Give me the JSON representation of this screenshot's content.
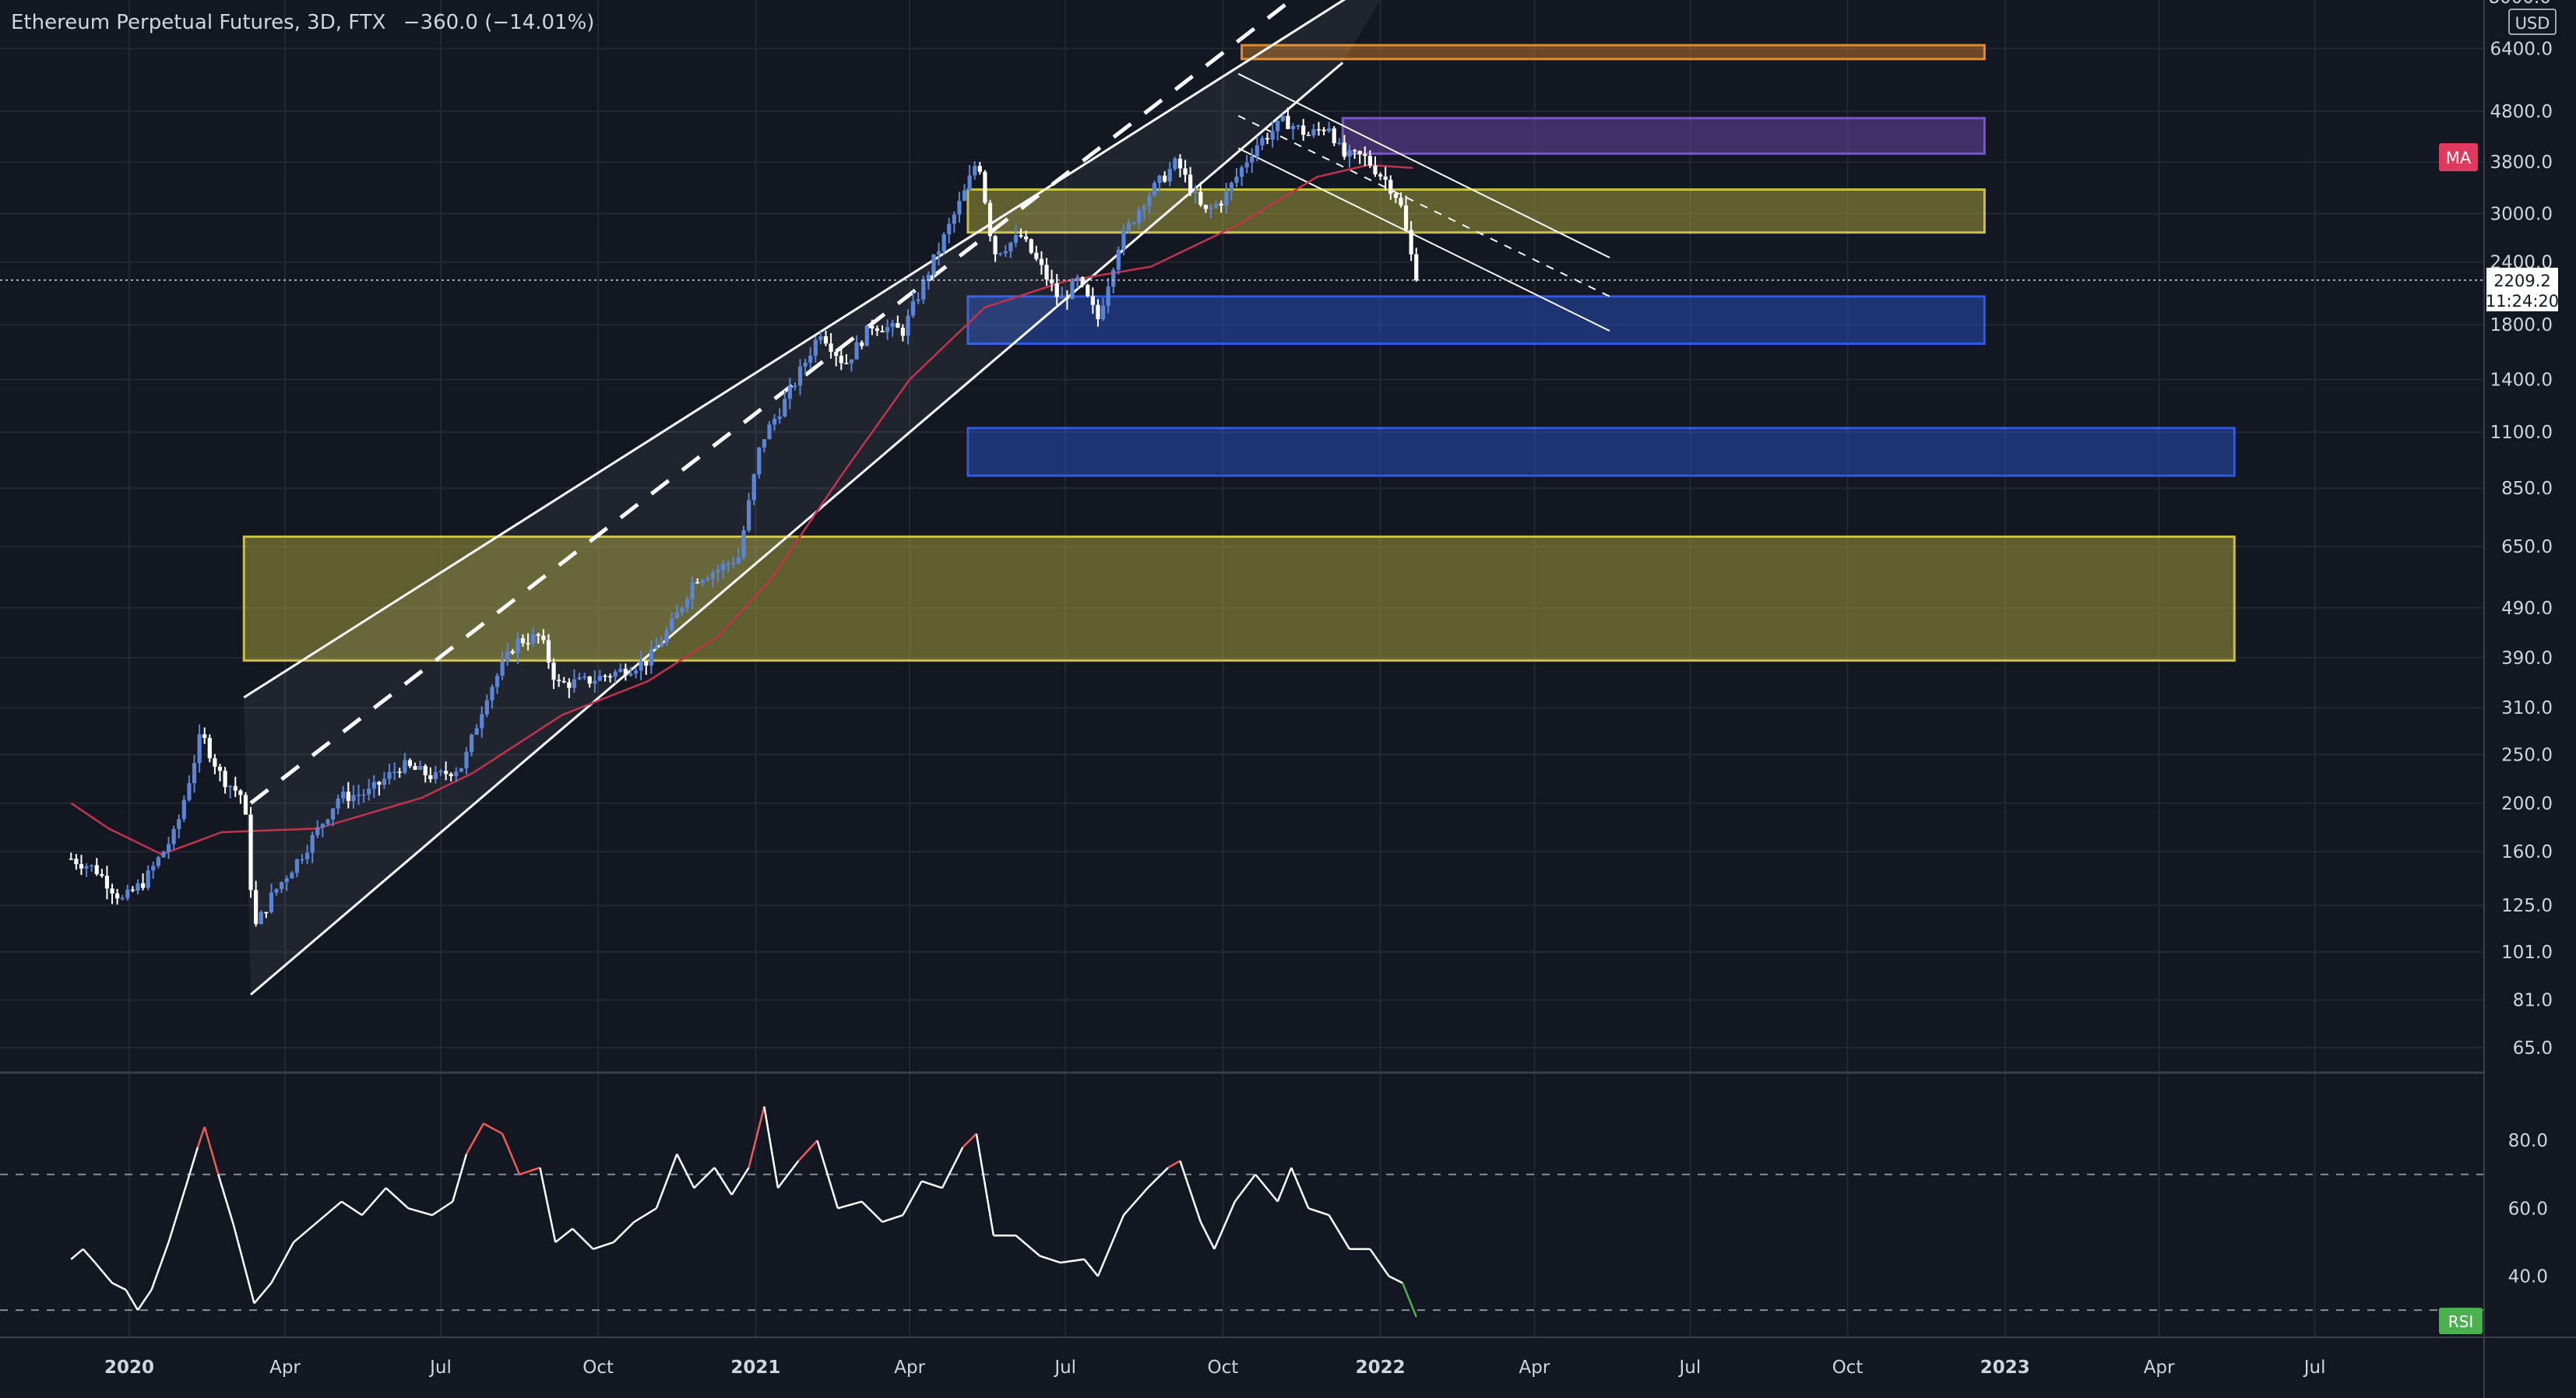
{
  "header": {
    "symbol": "Ethereum Perpetual Futures, 3D, FTX",
    "change": "−360.0 (−14.01%)"
  },
  "price_axis": {
    "currency": "USD",
    "top_partial": "8000.0",
    "ticks": [
      "6400.0",
      "4800.0",
      "3800.0",
      "3000.0",
      "2400.0",
      "1800.0",
      "1400.0",
      "1100.0",
      "850.0",
      "650.0",
      "490.0",
      "390.0",
      "310.0",
      "250.0",
      "200.0",
      "160.0",
      "125.0",
      "101.0",
      "81.0",
      "65.0"
    ],
    "last_price": "2209.2",
    "countdown": "11:24:20",
    "ma_badge": "MA"
  },
  "rsi_axis": {
    "ticks": [
      "80.0",
      "60.0",
      "40.0"
    ],
    "badge": "RSI"
  },
  "time_axis": {
    "labels": [
      "2020",
      "Apr",
      "Jul",
      "Oct",
      "2021",
      "Apr",
      "Jul",
      "Oct",
      "2022",
      "Apr",
      "Jul",
      "Oct",
      "2023",
      "Apr",
      "Jul"
    ]
  },
  "colors": {
    "background": "#131722",
    "grid": "#242733",
    "up_candle": "#5b84d6",
    "down_candle": "#ffffff",
    "ma_line": "#c2334d",
    "ma_badge": "#e0385f",
    "rsi_line": "#ffffff",
    "rsi_overbought": "#ef5b5b",
    "rsi_oversold": "#4caf50",
    "rsi_badge": "#4caf50",
    "zone_yellow": "#c9c041",
    "zone_blue": "#2d5ae0",
    "zone_purple": "#7b53c9",
    "zone_orange": "#e38a2a"
  },
  "chart_data": [
    {
      "type": "candlestick",
      "scale": "log",
      "ylim": [
        58,
        8000
      ],
      "x_dates": [
        "2020-01-01",
        "2020-04-01",
        "2020-07-01",
        "2020-10-01",
        "2021-01-01",
        "2021-04-01",
        "2021-07-01",
        "2021-10-01",
        "2022-01-01",
        "2022-04-01",
        "2022-07-01",
        "2022-10-01",
        "2023-01-01",
        "2023-04-01",
        "2023-07-01"
      ],
      "price_path": [
        [
          "2019-11-28",
          155
        ],
        [
          "2019-12-12",
          148
        ],
        [
          "2019-12-28",
          128
        ],
        [
          "2020-01-10",
          140
        ],
        [
          "2020-01-28",
          175
        ],
        [
          "2020-02-12",
          275
        ],
        [
          "2020-02-24",
          225
        ],
        [
          "2020-03-08",
          205
        ],
        [
          "2020-03-14",
          112
        ],
        [
          "2020-03-25",
          132
        ],
        [
          "2020-04-12",
          160
        ],
        [
          "2020-05-02",
          205
        ],
        [
          "2020-05-20",
          210
        ],
        [
          "2020-06-08",
          238
        ],
        [
          "2020-06-28",
          225
        ],
        [
          "2020-07-14",
          238
        ],
        [
          "2020-07-28",
          330
        ],
        [
          "2020-08-14",
          420
        ],
        [
          "2020-08-28",
          430
        ],
        [
          "2020-09-07",
          345
        ],
        [
          "2020-09-24",
          350
        ],
        [
          "2020-10-12",
          365
        ],
        [
          "2020-10-30",
          385
        ],
        [
          "2020-11-14",
          460
        ],
        [
          "2020-11-26",
          560
        ],
        [
          "2020-12-10",
          585
        ],
        [
          "2020-12-22",
          620
        ],
        [
          "2021-01-04",
          1050
        ],
        [
          "2021-01-20",
          1300
        ],
        [
          "2021-02-08",
          1750
        ],
        [
          "2021-02-22",
          1500
        ],
        [
          "2021-03-10",
          1800
        ],
        [
          "2021-03-28",
          1750
        ],
        [
          "2021-04-12",
          2300
        ],
        [
          "2021-05-03",
          3300
        ],
        [
          "2021-05-11",
          3900
        ],
        [
          "2021-05-20",
          2500
        ],
        [
          "2021-06-05",
          2700
        ],
        [
          "2021-06-18",
          2300
        ],
        [
          "2021-06-28",
          2000
        ],
        [
          "2021-07-08",
          2200
        ],
        [
          "2021-07-20",
          1850
        ],
        [
          "2021-08-01",
          2600
        ],
        [
          "2021-08-16",
          3200
        ],
        [
          "2021-09-04",
          3800
        ],
        [
          "2021-09-20",
          3000
        ],
        [
          "2021-10-01",
          3200
        ],
        [
          "2021-10-20",
          4100
        ],
        [
          "2021-11-06",
          4600
        ],
        [
          "2021-11-20",
          4300
        ],
        [
          "2021-12-02",
          4500
        ],
        [
          "2021-12-10",
          3900
        ],
        [
          "2021-12-22",
          3900
        ],
        [
          "2022-01-04",
          3500
        ],
        [
          "2022-01-12",
          3200
        ],
        [
          "2022-01-22",
          2209
        ]
      ],
      "ma_path": [
        [
          "2019-11-28",
          200
        ],
        [
          "2019-12-20",
          178
        ],
        [
          "2020-01-20",
          158
        ],
        [
          "2020-02-24",
          175
        ],
        [
          "2020-04-20",
          178
        ],
        [
          "2020-06-20",
          205
        ],
        [
          "2020-07-20",
          230
        ],
        [
          "2020-09-10",
          300
        ],
        [
          "2020-10-30",
          350
        ],
        [
          "2020-12-10",
          430
        ],
        [
          "2021-01-10",
          560
        ],
        [
          "2021-02-20",
          900
        ],
        [
          "2021-04-01",
          1400
        ],
        [
          "2021-05-15",
          1950
        ],
        [
          "2021-07-01",
          2200
        ],
        [
          "2021-08-20",
          2350
        ],
        [
          "2021-10-10",
          2850
        ],
        [
          "2021-11-25",
          3550
        ],
        [
          "2021-12-25",
          3750
        ],
        [
          "2022-01-20",
          3700
        ]
      ],
      "zones": [
        {
          "color": "zone_orange",
          "from": "2021-10-12",
          "to": "2022-12-20",
          "low": 6100,
          "high": 6500
        },
        {
          "color": "zone_purple",
          "from": "2021-12-10",
          "to": "2022-12-20",
          "low": 3950,
          "high": 4650
        },
        {
          "color": "zone_yellow",
          "from": "2021-05-05",
          "to": "2022-12-20",
          "low": 2750,
          "high": 3350
        },
        {
          "color": "zone_blue",
          "from": "2021-05-05",
          "to": "2022-12-20",
          "low": 1650,
          "high": 2050
        },
        {
          "color": "zone_blue",
          "from": "2021-05-05",
          "to": "2023-05-15",
          "low": 900,
          "high": 1120
        },
        {
          "color": "zone_yellow",
          "from": "2020-03-08",
          "to": "2023-05-15",
          "low": 385,
          "high": 680
        }
      ],
      "channel": {
        "upper": [
          [
            "2020-03-08",
            325
          ],
          [
            "2022-01-14",
            9500
          ]
        ],
        "mid": [
          [
            "2020-03-12",
            200
          ],
          [
            "2021-11-20",
            8500
          ]
        ],
        "lower": [
          [
            "2020-03-12",
            83
          ],
          [
            "2021-12-10",
            6000
          ]
        ]
      },
      "down_channel": {
        "upper": [
          [
            "2021-10-10",
            5700
          ],
          [
            "2022-05-15",
            2450
          ]
        ],
        "mid": [
          [
            "2021-10-10",
            4700
          ],
          [
            "2022-05-15",
            2050
          ]
        ],
        "lower": [
          [
            "2021-10-10",
            4050
          ],
          [
            "2022-05-15",
            1750
          ]
        ]
      }
    },
    {
      "type": "line",
      "name": "RSI",
      "ylim": [
        22,
        100
      ],
      "levels": [
        70,
        30
      ],
      "rsi_path": [
        [
          "2019-11-28",
          45
        ],
        [
          "2019-12-05",
          48
        ],
        [
          "2019-12-12",
          44
        ],
        [
          "2019-12-22",
          38
        ],
        [
          "2019-12-30",
          36
        ],
        [
          "2020-01-06",
          30
        ],
        [
          "2020-01-14",
          36
        ],
        [
          "2020-01-24",
          50
        ],
        [
          "2020-02-04",
          68
        ],
        [
          "2020-02-10",
          78
        ],
        [
          "2020-02-14",
          84
        ],
        [
          "2020-02-22",
          70
        ],
        [
          "2020-03-02",
          55
        ],
        [
          "2020-03-14",
          32
        ],
        [
          "2020-03-24",
          38
        ],
        [
          "2020-04-06",
          50
        ],
        [
          "2020-04-20",
          56
        ],
        [
          "2020-05-04",
          62
        ],
        [
          "2020-05-16",
          58
        ],
        [
          "2020-05-30",
          66
        ],
        [
          "2020-06-12",
          60
        ],
        [
          "2020-06-26",
          58
        ],
        [
          "2020-07-08",
          62
        ],
        [
          "2020-07-16",
          76
        ],
        [
          "2020-07-26",
          85
        ],
        [
          "2020-08-06",
          82
        ],
        [
          "2020-08-16",
          70
        ],
        [
          "2020-08-28",
          72
        ],
        [
          "2020-09-06",
          50
        ],
        [
          "2020-09-16",
          54
        ],
        [
          "2020-09-28",
          48
        ],
        [
          "2020-10-10",
          50
        ],
        [
          "2020-10-22",
          56
        ],
        [
          "2020-11-04",
          60
        ],
        [
          "2020-11-16",
          76
        ],
        [
          "2020-11-26",
          66
        ],
        [
          "2020-12-08",
          72
        ],
        [
          "2020-12-18",
          64
        ],
        [
          "2020-12-28",
          72
        ],
        [
          "2021-01-06",
          90
        ],
        [
          "2021-01-14",
          66
        ],
        [
          "2021-01-26",
          74
        ],
        [
          "2021-02-06",
          80
        ],
        [
          "2021-02-18",
          60
        ],
        [
          "2021-03-04",
          62
        ],
        [
          "2021-03-16",
          56
        ],
        [
          "2021-03-28",
          58
        ],
        [
          "2021-04-08",
          68
        ],
        [
          "2021-04-20",
          66
        ],
        [
          "2021-05-02",
          78
        ],
        [
          "2021-05-10",
          82
        ],
        [
          "2021-05-20",
          52
        ],
        [
          "2021-06-02",
          52
        ],
        [
          "2021-06-16",
          46
        ],
        [
          "2021-06-28",
          44
        ],
        [
          "2021-07-12",
          45
        ],
        [
          "2021-07-20",
          40
        ],
        [
          "2021-08-04",
          58
        ],
        [
          "2021-08-18",
          66
        ],
        [
          "2021-08-30",
          72
        ],
        [
          "2021-09-06",
          74
        ],
        [
          "2021-09-18",
          56
        ],
        [
          "2021-09-26",
          48
        ],
        [
          "2021-10-08",
          62
        ],
        [
          "2021-10-20",
          70
        ],
        [
          "2021-11-02",
          62
        ],
        [
          "2021-11-10",
          72
        ],
        [
          "2021-11-20",
          60
        ],
        [
          "2021-12-02",
          58
        ],
        [
          "2021-12-14",
          48
        ],
        [
          "2021-12-26",
          48
        ],
        [
          "2022-01-06",
          40
        ],
        [
          "2022-01-14",
          38
        ],
        [
          "2022-01-22",
          28
        ]
      ]
    }
  ]
}
